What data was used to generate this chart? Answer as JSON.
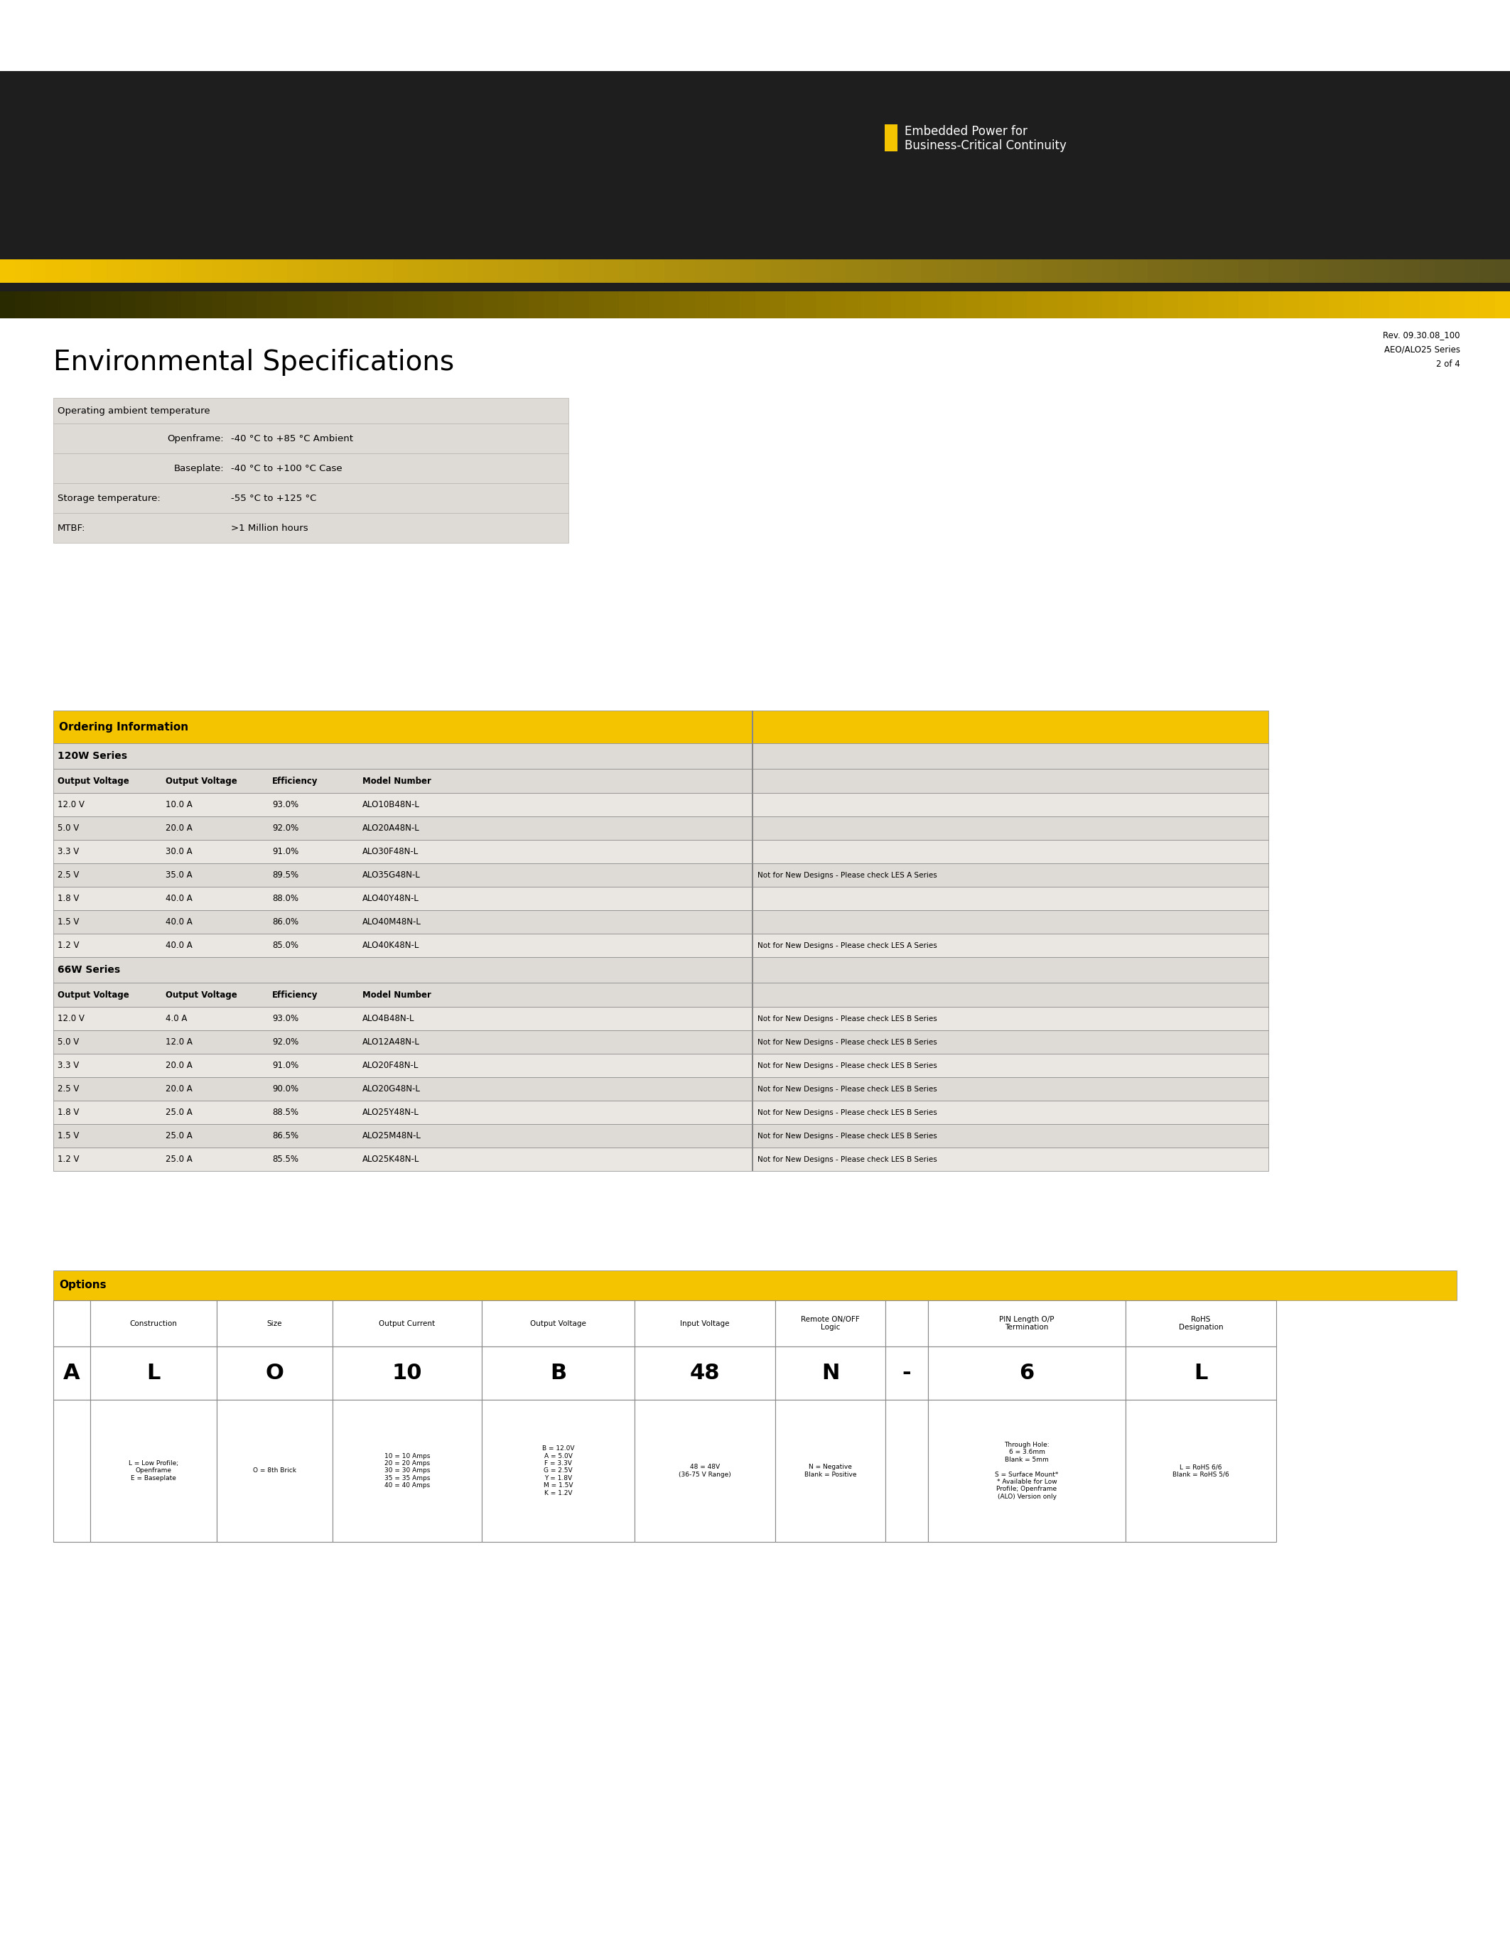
{
  "bg_color": "#ffffff",
  "dark_header_color": "#1e1e1e",
  "yellow_color": "#f5c400",
  "table_bg": "#e0dbd5",
  "table_bg_alt": "#eae6e1",
  "env_title": "Environmental Specifications",
  "env_rows": [
    {
      "c1": "Operating ambient temperature",
      "c2": "",
      "c3": ""
    },
    {
      "c1": "",
      "c2": "Openframe:",
      "c3": "-40 °C to +85 °C Ambient"
    },
    {
      "c1": "",
      "c2": "Baseplate:",
      "c3": "-40 °C to +100 °C Case"
    },
    {
      "c1": "Storage temperature:",
      "c2": "",
      "c3": "-55 °C to +125 °C"
    },
    {
      "c1": "MTBF:",
      "c2": "",
      "c3": ">1 Million hours"
    }
  ],
  "ordering_title": "Ordering Information",
  "series_120w_label": "120W Series",
  "series_66w_label": "66W Series",
  "col_headers": [
    "Output Voltage",
    "Output Voltage",
    "Efficiency",
    "Model Number"
  ],
  "rows_120w": [
    [
      "12.0 V",
      "10.0 A",
      "93.0%",
      "ALO10B48N-L",
      ""
    ],
    [
      "5.0 V",
      "20.0 A",
      "92.0%",
      "ALO20A48N-L",
      ""
    ],
    [
      "3.3 V",
      "30.0 A",
      "91.0%",
      "ALO30F48N-L",
      ""
    ],
    [
      "2.5 V",
      "35.0 A",
      "89.5%",
      "ALO35G48N-L",
      "Not for New Designs - Please check LES A Series"
    ],
    [
      "1.8 V",
      "40.0 A",
      "88.0%",
      "ALO40Y48N-L",
      ""
    ],
    [
      "1.5 V",
      "40.0 A",
      "86.0%",
      "ALO40M48N-L",
      ""
    ],
    [
      "1.2 V",
      "40.0 A",
      "85.0%",
      "ALO40K48N-L",
      "Not for New Designs - Please check LES A Series"
    ]
  ],
  "rows_66w": [
    [
      "12.0 V",
      "4.0 A",
      "93.0%",
      "ALO4B48N-L",
      "Not for New Designs - Please check LES B Series"
    ],
    [
      "5.0 V",
      "12.0 A",
      "92.0%",
      "ALO12A48N-L",
      "Not for New Designs - Please check LES B Series"
    ],
    [
      "3.3 V",
      "20.0 A",
      "91.0%",
      "ALO20F48N-L",
      "Not for New Designs - Please check LES B Series"
    ],
    [
      "2.5 V",
      "20.0 A",
      "90.0%",
      "ALO20G48N-L",
      "Not for New Designs - Please check LES B Series"
    ],
    [
      "1.8 V",
      "25.0 A",
      "88.5%",
      "ALO25Y48N-L",
      "Not for New Designs - Please check LES B Series"
    ],
    [
      "1.5 V",
      "25.0 A",
      "86.5%",
      "ALO25M48N-L",
      "Not for New Designs - Please check LES B Series"
    ],
    [
      "1.2 V",
      "25.0 A",
      "85.5%",
      "ALO25K48N-L",
      "Not for New Designs - Please check LES B Series"
    ]
  ],
  "options_title": "Options",
  "opt_col_headers": [
    "",
    "Construction",
    "Size",
    "Output Current",
    "Output Voltage",
    "Input Voltage",
    "Remote ON/OFF\nLogic",
    "",
    "PIN Length O/P\nTermination",
    "RoHS\nDesignation"
  ],
  "opt_row_a": [
    "A",
    "L",
    "O",
    "10",
    "B",
    "48",
    "N",
    "-",
    "6",
    "L"
  ],
  "opt_row_desc": [
    "",
    "L = Low Profile;\nOpenframe\nE = Baseplate",
    "O = 8th Brick",
    "10 = 10 Amps\n20 = 20 Amps\n30 = 30 Amps\n35 = 35 Amps\n40 = 40 Amps",
    "B = 12.0V\nA = 5.0V\nF = 3.3V\nG = 2.5V\nY = 1.8V\nM = 1.5V\nK = 1.2V",
    "48 = 48V\n(36-75 V Range)",
    "N = Negative\nBlank = Positive",
    "",
    "Through Hole:\n6 = 3.6mm\nBlank = 5mm\n\nS = Surface Mount*\n* Available for Low\nProfile; Openframe\n(ALO) Version only",
    "L = RoHS 6/6\nBlank = RoHS 5/6"
  ],
  "rev_text_line1": "Rev. 09.30.08_100",
  "rev_text_line2": "AEO/ALO25 Series",
  "rev_text_line3": "2 of 4",
  "embedded_line1": "Embedded Power for",
  "embedded_line2": "Business-Critical Continuity"
}
